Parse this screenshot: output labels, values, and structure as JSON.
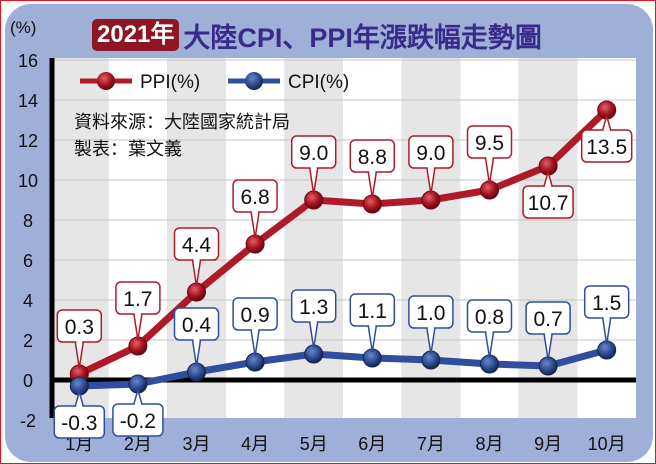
{
  "title": {
    "year_badge": "2021年",
    "main": "大陸CPI、PPI年漲跌幅走勢圖"
  },
  "y_unit": "(%)",
  "legend": {
    "ppi": "PPI(%)",
    "cpi": "CPI(%)"
  },
  "source": "資料來源：大陸國家統計局",
  "credit": "製表：葉文義",
  "colors": {
    "ppi": "#b01a28",
    "cpi": "#2f4f9e",
    "panel": "#9fb0d8",
    "title": "#3a2a8a",
    "badge": "#8e1524"
  },
  "chart_data": {
    "type": "line",
    "title": "2021年大陸CPI、PPI年漲跌幅走勢圖",
    "xlabel": "",
    "ylabel": "(%)",
    "categories": [
      "1月",
      "2月",
      "3月",
      "4月",
      "5月",
      "6月",
      "7月",
      "8月",
      "9月",
      "10月"
    ],
    "series": [
      {
        "name": "PPI(%)",
        "values": [
          0.3,
          1.7,
          4.4,
          6.8,
          9.0,
          8.8,
          9.0,
          9.5,
          10.7,
          13.5
        ]
      },
      {
        "name": "CPI(%)",
        "values": [
          -0.3,
          -0.2,
          0.4,
          0.9,
          1.3,
          1.1,
          1.0,
          0.8,
          0.7,
          1.5
        ]
      }
    ],
    "ylim": [
      -2,
      16
    ],
    "yticks": [
      16,
      14,
      12,
      10,
      8,
      6,
      4,
      2,
      0,
      -2
    ],
    "grid": true,
    "legend_position": "top-left",
    "annotations": [
      "資料來源：大陸國家統計局",
      "製表：葉文義"
    ]
  }
}
